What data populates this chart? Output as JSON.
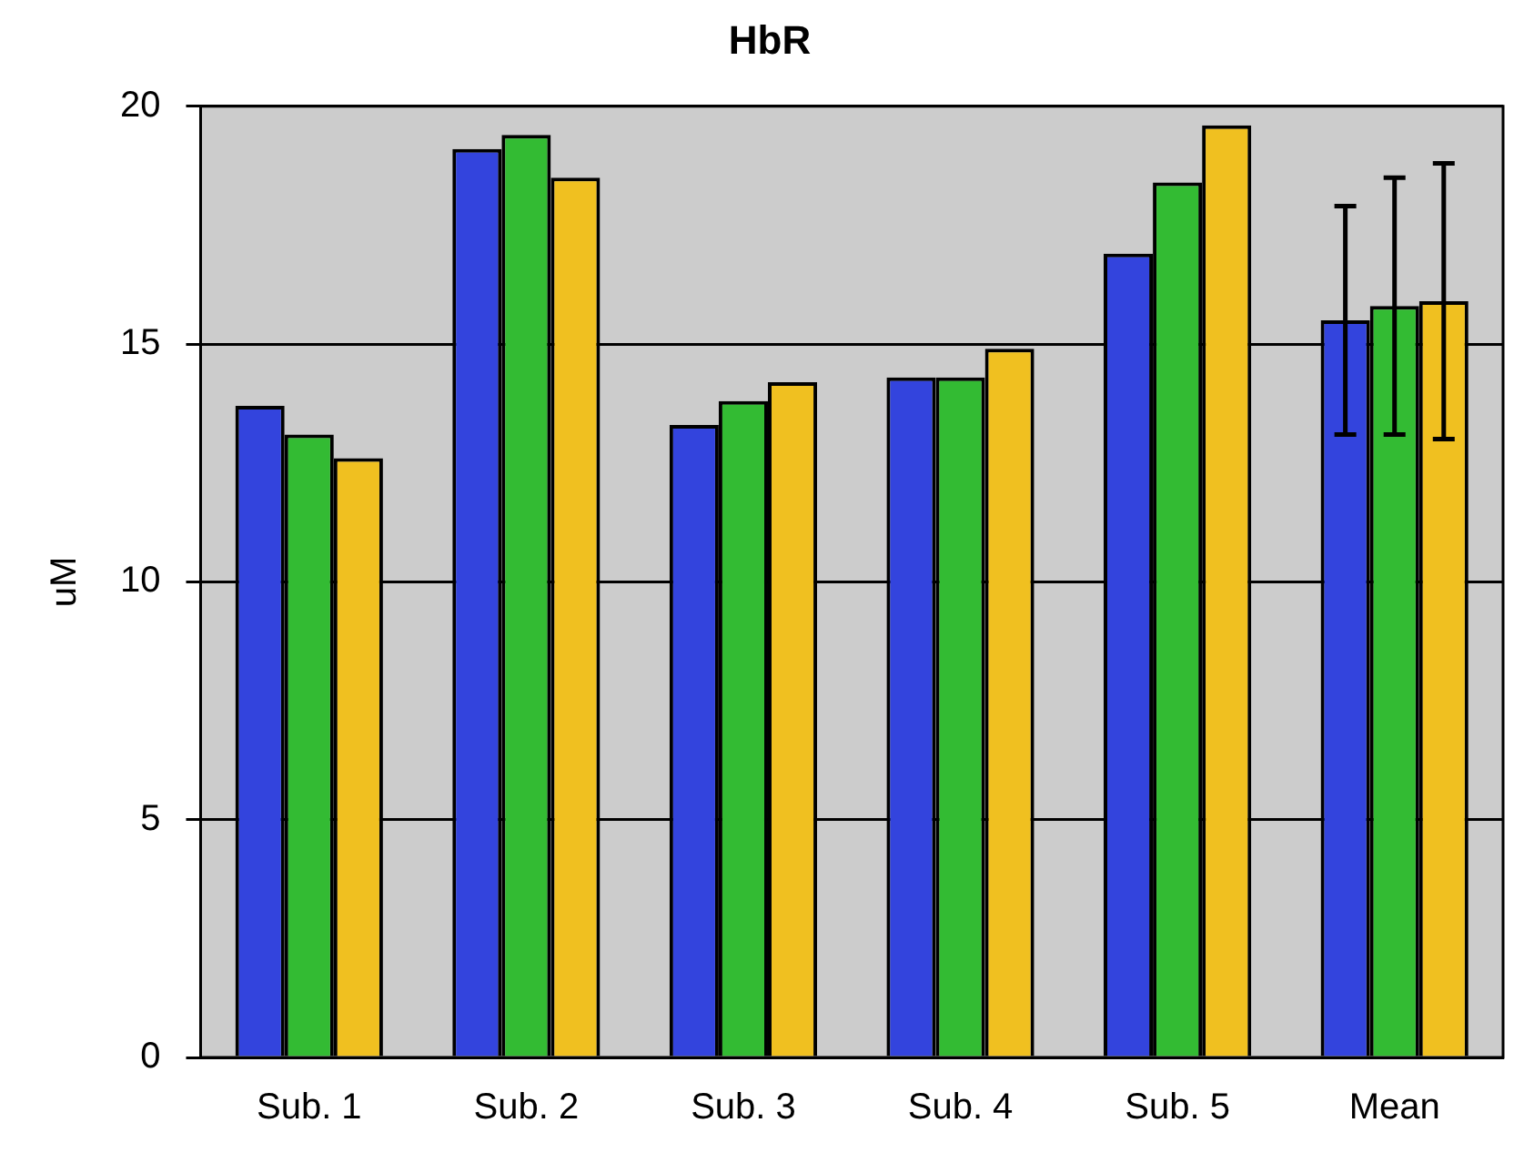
{
  "chart_data": {
    "type": "bar",
    "title": "HbR",
    "ylabel": "uM",
    "categories": [
      "Sub. 1",
      "Sub. 2",
      "Sub. 3",
      "Sub. 4",
      "Sub. 5",
      "Mean"
    ],
    "series": [
      {
        "color": "#3344dd",
        "values": [
          13.7,
          19.1,
          13.3,
          14.3,
          16.9,
          15.5
        ],
        "errors": [
          null,
          null,
          null,
          null,
          null,
          2.4
        ]
      },
      {
        "color": "#33bb33",
        "values": [
          13.1,
          19.4,
          13.8,
          14.3,
          18.4,
          15.8
        ],
        "errors": [
          null,
          null,
          null,
          null,
          null,
          2.7
        ]
      },
      {
        "color": "#f0c020",
        "values": [
          12.6,
          18.5,
          14.2,
          14.9,
          19.6,
          15.9
        ],
        "errors": [
          null,
          null,
          null,
          null,
          null,
          2.9
        ]
      }
    ],
    "ylim": [
      0,
      20
    ],
    "yticks": [
      0,
      5,
      10,
      15,
      20
    ],
    "grid": "y",
    "legend": false
  }
}
